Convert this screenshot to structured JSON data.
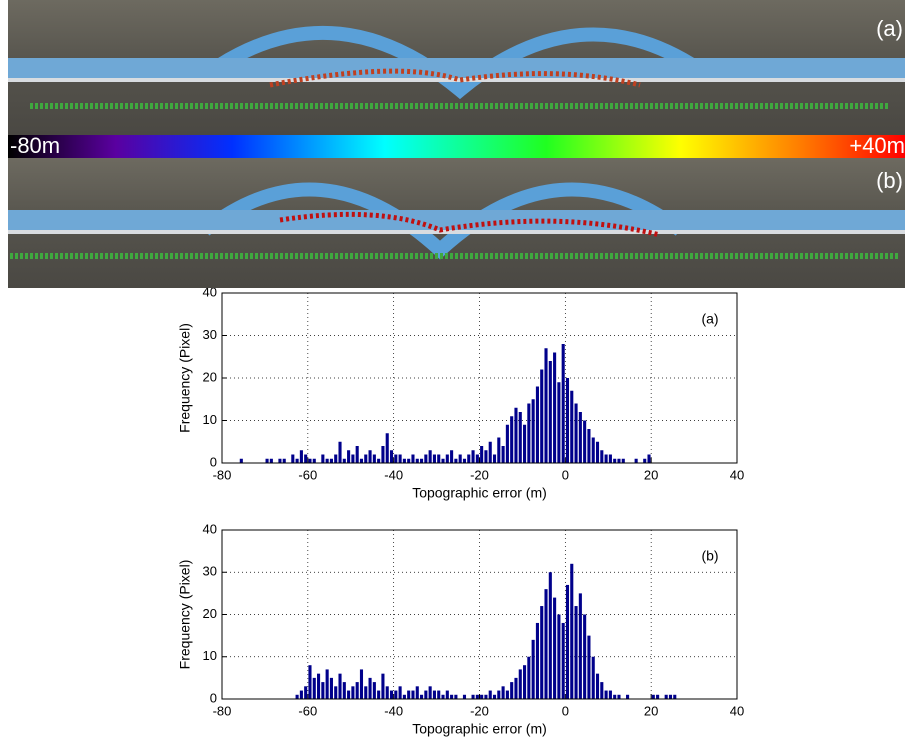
{
  "image_panels": {
    "labels": [
      "(a)",
      "(b)"
    ],
    "colorbar": {
      "min_label": "-80m",
      "max_label": "+40m"
    }
  },
  "chart_data": [
    {
      "type": "histogram",
      "annotation": "(a)",
      "xlabel": "Topographic error (m)",
      "ylabel": "Frequency (Pixel)",
      "color": "#00008b",
      "bins": [
        -76,
        -75,
        -74,
        -73,
        -72,
        -71,
        -70,
        -69,
        -68,
        -67,
        -66,
        -65,
        -64,
        -63,
        -62,
        -61,
        -60,
        -59,
        -58,
        -57,
        -56,
        -55,
        -54,
        -53,
        -52,
        -51,
        -50,
        -49,
        -48,
        -47,
        -46,
        -45,
        -44,
        -43,
        -42,
        -41,
        -40,
        -39,
        -38,
        -37,
        -36,
        -35,
        -34,
        -33,
        -32,
        -31,
        -30,
        -29,
        -28,
        -27,
        -26,
        -25,
        -24,
        -23,
        -22,
        -21,
        -20,
        -19,
        -18,
        -17,
        -16,
        -15,
        -14,
        -13,
        -12,
        -11,
        -10,
        -9,
        -8,
        -7,
        -6,
        -5,
        -4,
        -3,
        -2,
        -1,
        0,
        1,
        2,
        3,
        4,
        5,
        6,
        7,
        8,
        9,
        10,
        11,
        12,
        13,
        14,
        15,
        16,
        17,
        18,
        19,
        20
      ],
      "values": [
        1,
        0,
        0,
        0,
        0,
        0,
        1,
        1,
        0,
        1,
        1,
        0,
        2,
        1,
        3,
        2,
        1,
        1,
        0,
        2,
        1,
        1,
        2,
        5,
        1,
        3,
        2,
        4,
        1,
        2,
        3,
        2,
        1,
        4,
        7,
        3,
        2,
        2,
        1,
        1,
        2,
        1,
        1,
        2,
        3,
        2,
        2,
        1,
        2,
        3,
        1,
        2,
        1,
        2,
        3,
        2,
        4,
        3,
        5,
        2,
        6,
        4,
        9,
        11,
        13,
        12,
        9,
        14,
        15,
        18,
        22,
        27,
        24,
        26,
        19,
        28,
        20,
        17,
        14,
        12,
        10,
        8,
        6,
        5,
        3,
        2,
        2,
        1,
        1,
        1,
        0,
        0,
        1,
        0,
        1,
        2
      ],
      "xlim": [
        -80,
        40
      ],
      "xticks": [
        -80,
        -60,
        -40,
        -20,
        0,
        20,
        40
      ],
      "ylim": [
        0,
        40
      ],
      "yticks": [
        0,
        10,
        20,
        30,
        40
      ],
      "grid": true
    },
    {
      "type": "histogram",
      "annotation": "(b)",
      "xlabel": "Topographic error (m)",
      "ylabel": "Frequency (Pixel)",
      "color": "#00008b",
      "bins": [
        -63,
        -62,
        -61,
        -60,
        -59,
        -58,
        -57,
        -56,
        -55,
        -54,
        -53,
        -52,
        -51,
        -50,
        -49,
        -48,
        -47,
        -46,
        -45,
        -44,
        -43,
        -42,
        -41,
        -40,
        -39,
        -38,
        -37,
        -36,
        -35,
        -34,
        -33,
        -32,
        -31,
        -30,
        -29,
        -28,
        -27,
        -26,
        -25,
        -24,
        -23,
        -22,
        -21,
        -20,
        -19,
        -18,
        -17,
        -16,
        -15,
        -14,
        -13,
        -12,
        -11,
        -10,
        -9,
        -8,
        -7,
        -6,
        -5,
        -4,
        -3,
        -2,
        -1,
        0,
        1,
        2,
        3,
        4,
        5,
        6,
        7,
        8,
        9,
        10,
        11,
        12,
        13,
        14,
        15,
        16,
        17,
        18,
        19,
        20,
        21,
        22,
        23,
        24,
        25,
        26
      ],
      "values": [
        1,
        2,
        3,
        8,
        5,
        6,
        4,
        7,
        5,
        3,
        6,
        4,
        2,
        3,
        4,
        7,
        3,
        5,
        4,
        2,
        6,
        3,
        2,
        2,
        3,
        1,
        2,
        2,
        3,
        1,
        2,
        3,
        2,
        2,
        1,
        2,
        1,
        1,
        0,
        1,
        0,
        1,
        1,
        1,
        1,
        2,
        1,
        2,
        3,
        2,
        4,
        5,
        7,
        8,
        10,
        14,
        18,
        22,
        26,
        30,
        24,
        20,
        18,
        27,
        32,
        22,
        25,
        20,
        15,
        10,
        6,
        4,
        2,
        2,
        1,
        1,
        0,
        1,
        0,
        0,
        0,
        0,
        0,
        1,
        1,
        0,
        1,
        1,
        1
      ],
      "xlim": [
        -80,
        40
      ],
      "xticks": [
        -80,
        -60,
        -40,
        -20,
        0,
        20,
        40
      ],
      "ylim": [
        0,
        40
      ],
      "yticks": [
        0,
        10,
        20,
        30,
        40
      ],
      "grid": true
    }
  ]
}
